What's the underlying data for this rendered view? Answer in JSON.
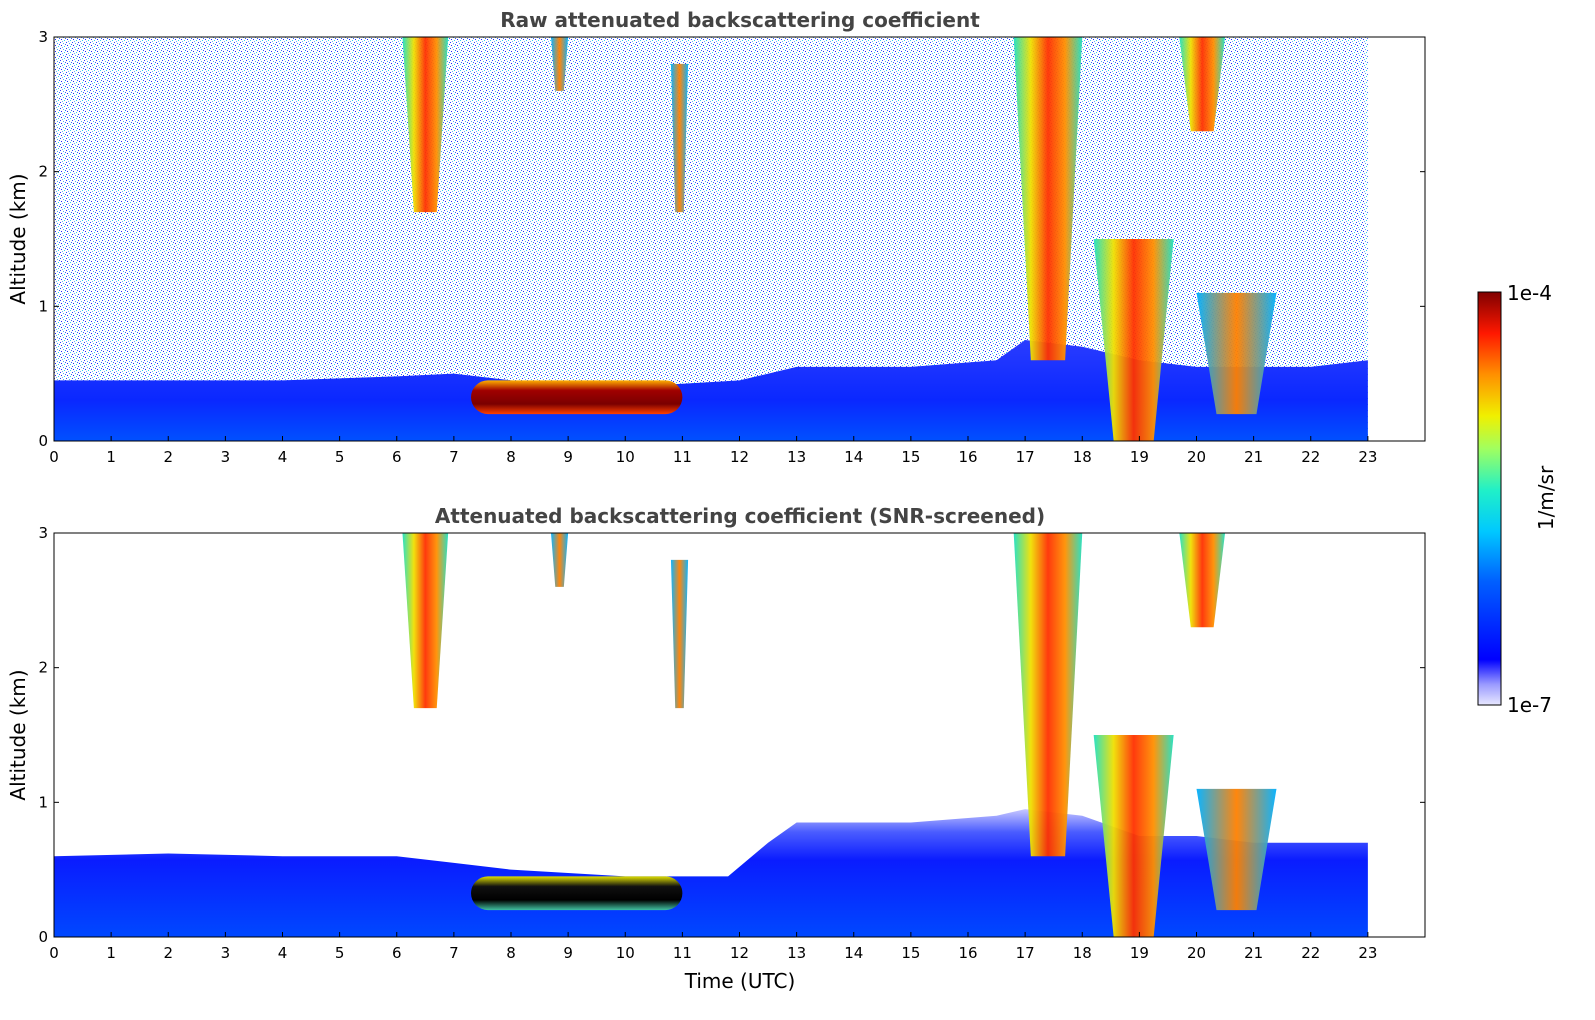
{
  "chart_data": [
    {
      "type": "heatmap",
      "title": "Raw attenuated backscattering coefficient",
      "xlabel": "",
      "ylabel": "Altitude (km)",
      "xlim": [
        0,
        24
      ],
      "ylim": [
        0,
        3
      ],
      "x_ticks": [
        0,
        1,
        2,
        3,
        4,
        5,
        6,
        7,
        8,
        9,
        10,
        11,
        12,
        13,
        14,
        15,
        16,
        17,
        18,
        19,
        20,
        21,
        22,
        23
      ],
      "y_ticks": [
        0,
        1,
        2,
        3
      ],
      "data_end_time": 23,
      "screened": false,
      "boundary_layer_top_km": [
        [
          0,
          0.45
        ],
        [
          2,
          0.45
        ],
        [
          4,
          0.45
        ],
        [
          6,
          0.48
        ],
        [
          7,
          0.5
        ],
        [
          8,
          0.45
        ],
        [
          10,
          0.4
        ],
        [
          12,
          0.45
        ],
        [
          13,
          0.55
        ],
        [
          15,
          0.55
        ],
        [
          16.5,
          0.6
        ],
        [
          17,
          0.75
        ],
        [
          18,
          0.7
        ],
        [
          19,
          0.6
        ],
        [
          20,
          0.55
        ],
        [
          21,
          0.55
        ],
        [
          22,
          0.55
        ],
        [
          23,
          0.6
        ]
      ],
      "cloud_features": [
        {
          "t_start": 6.1,
          "t_end": 6.9,
          "alt_bottom_km": 1.7,
          "alt_top_km": 3.0,
          "intensity": "high"
        },
        {
          "t_start": 8.7,
          "t_end": 9.0,
          "alt_bottom_km": 2.6,
          "alt_top_km": 3.0,
          "intensity": "medium"
        },
        {
          "t_start": 10.8,
          "t_end": 11.1,
          "alt_bottom_km": 1.7,
          "alt_top_km": 2.8,
          "intensity": "medium"
        },
        {
          "t_start": 7.3,
          "t_end": 11.0,
          "alt_bottom_km": 0.2,
          "alt_top_km": 0.45,
          "intensity": "very high"
        },
        {
          "t_start": 16.8,
          "t_end": 18.0,
          "alt_bottom_km": 0.6,
          "alt_top_km": 3.0,
          "intensity": "high"
        },
        {
          "t_start": 18.2,
          "t_end": 19.6,
          "alt_bottom_km": 0.0,
          "alt_top_km": 1.5,
          "intensity": "high"
        },
        {
          "t_start": 19.7,
          "t_end": 20.5,
          "alt_bottom_km": 2.3,
          "alt_top_km": 3.0,
          "intensity": "high"
        },
        {
          "t_start": 20.0,
          "t_end": 21.4,
          "alt_bottom_km": 0.2,
          "alt_top_km": 1.1,
          "intensity": "medium"
        }
      ]
    },
    {
      "type": "heatmap",
      "title": "Attenuated backscattering coefficient (SNR-screened)",
      "xlabel": "Time (UTC)",
      "ylabel": "Altitude (km)",
      "xlim": [
        0,
        24
      ],
      "ylim": [
        0,
        3
      ],
      "x_ticks": [
        0,
        1,
        2,
        3,
        4,
        5,
        6,
        7,
        8,
        9,
        10,
        11,
        12,
        13,
        14,
        15,
        16,
        17,
        18,
        19,
        20,
        21,
        22,
        23
      ],
      "y_ticks": [
        0,
        1,
        2,
        3
      ],
      "data_end_time": 23,
      "screened": true,
      "boundary_layer_top_km": [
        [
          0,
          0.6
        ],
        [
          2,
          0.62
        ],
        [
          4,
          0.6
        ],
        [
          6,
          0.6
        ],
        [
          7,
          0.55
        ],
        [
          8,
          0.5
        ],
        [
          10,
          0.45
        ],
        [
          11.8,
          0.45
        ],
        [
          12.5,
          0.7
        ],
        [
          13,
          0.85
        ],
        [
          15,
          0.85
        ],
        [
          16.5,
          0.9
        ],
        [
          17,
          0.95
        ],
        [
          18,
          0.9
        ],
        [
          19,
          0.75
        ],
        [
          20,
          0.75
        ],
        [
          21,
          0.7
        ],
        [
          22,
          0.7
        ],
        [
          23,
          0.7
        ]
      ],
      "cloud_features": [
        {
          "t_start": 6.1,
          "t_end": 6.9,
          "alt_bottom_km": 1.7,
          "alt_top_km": 3.0,
          "intensity": "high"
        },
        {
          "t_start": 8.7,
          "t_end": 9.0,
          "alt_bottom_km": 2.6,
          "alt_top_km": 3.0,
          "intensity": "medium"
        },
        {
          "t_start": 10.8,
          "t_end": 11.1,
          "alt_bottom_km": 1.7,
          "alt_top_km": 2.8,
          "intensity": "medium"
        },
        {
          "t_start": 7.3,
          "t_end": 11.0,
          "alt_bottom_km": 0.2,
          "alt_top_km": 0.45,
          "intensity": "very high"
        },
        {
          "t_start": 16.8,
          "t_end": 18.0,
          "alt_bottom_km": 0.6,
          "alt_top_km": 3.0,
          "intensity": "high"
        },
        {
          "t_start": 18.2,
          "t_end": 19.6,
          "alt_bottom_km": 0.0,
          "alt_top_km": 1.5,
          "intensity": "high"
        },
        {
          "t_start": 19.7,
          "t_end": 20.5,
          "alt_bottom_km": 2.3,
          "alt_top_km": 3.0,
          "intensity": "high"
        },
        {
          "t_start": 20.0,
          "t_end": 21.4,
          "alt_bottom_km": 0.2,
          "alt_top_km": 1.1,
          "intensity": "medium"
        }
      ]
    }
  ],
  "colorbar": {
    "label": "1/m/sr",
    "min_label": "1e-7",
    "max_label": "1e-4",
    "min_value": 1e-07,
    "max_value": 0.0001,
    "scale": "log",
    "colormap": "jet"
  },
  "colors": {
    "title": "#444444",
    "background": "#ffffff",
    "bl_raw": "#1d3cff",
    "bl_screened": "#0a22ff"
  }
}
